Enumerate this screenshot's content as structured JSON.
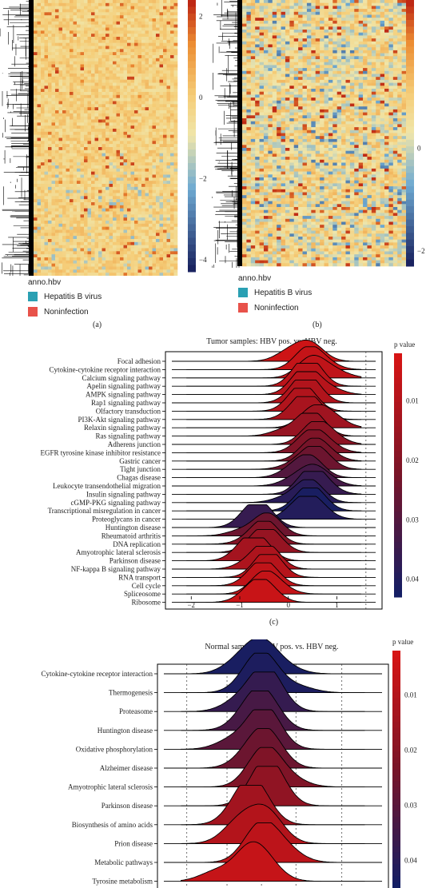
{
  "panel_a": {
    "label": "(a)",
    "legend_title": "anno.hbv",
    "legend_items": [
      {
        "label": "Hepatitis B virus",
        "color": "#2aa0b3"
      },
      {
        "label": "Noninfection",
        "color": "#e8524a"
      }
    ],
    "colorbar_ticks": [
      "2",
      "0",
      "−2",
      "−4"
    ],
    "colorbar_range": [
      -4.3,
      2.4
    ]
  },
  "panel_b": {
    "label": "(b)",
    "legend_title": "anno.hbv",
    "legend_items": [
      {
        "label": "Hepatitis B virus",
        "color": "#2aa0b3"
      },
      {
        "label": "Noninfection",
        "color": "#e8524a"
      }
    ],
    "colorbar_ticks": [
      "0",
      "−2"
    ],
    "colorbar_range": [
      -2.3,
      2.9
    ]
  },
  "chart_data": [
    {
      "type": "ridgeline",
      "title": "Tumor samples: HBV pos. vs. HBV neg.",
      "panel_label": "(c)",
      "legend_title": "p value",
      "legend_ticks": [
        "0.01",
        "0.02",
        "0.03",
        "0.04"
      ],
      "legend_range": [
        0.002,
        0.043
      ],
      "xlim": [
        -2.4,
        1.8
      ],
      "x_ticks": [
        -2,
        -1,
        0,
        1
      ],
      "x_tick_labels": [
        "−2",
        "−1",
        "0",
        "1"
      ],
      "categories": [
        {
          "name": "Focal adhesion",
          "center": 0.45,
          "p": 0.004
        },
        {
          "name": "Cytokine-cytokine receptor interaction",
          "center": 0.4,
          "p": 0.006
        },
        {
          "name": "Calcium signaling pathway",
          "center": 0.45,
          "p": 0.007
        },
        {
          "name": "Apelin signaling pathway",
          "center": 0.35,
          "p": 0.008
        },
        {
          "name": "AMPK signaling pathway",
          "center": 0.35,
          "p": 0.009
        },
        {
          "name": "Rap1 signaling pathway",
          "center": 0.35,
          "p": 0.01
        },
        {
          "name": "Olfactory transduction",
          "center": 0.3,
          "p": 0.01
        },
        {
          "name": "PI3K-Akt signaling pathway",
          "center": 0.45,
          "p": 0.012
        },
        {
          "name": "Relaxin signaling pathway",
          "center": 0.5,
          "p": 0.014
        },
        {
          "name": "Ras signaling pathway",
          "center": 0.45,
          "p": 0.016
        },
        {
          "name": "Adherens junction",
          "center": 0.55,
          "p": 0.018
        },
        {
          "name": "EGFR tyrosine kinase inhibitor resistance",
          "center": 0.55,
          "p": 0.021
        },
        {
          "name": "Gastric cancer",
          "center": 0.5,
          "p": 0.023
        },
        {
          "name": "Tight junction",
          "center": 0.5,
          "p": 0.025
        },
        {
          "name": "Chagas disease",
          "center": 0.45,
          "p": 0.03
        },
        {
          "name": "Leukocyte transendothelial migration",
          "center": 0.5,
          "p": 0.033
        },
        {
          "name": "Insulin signaling pathway",
          "center": 0.45,
          "p": 0.036
        },
        {
          "name": "cGMP-PKG signaling pathway",
          "center": 0.45,
          "p": 0.039
        },
        {
          "name": "Transcriptional misregulation in cancer",
          "center": 0.45,
          "p": 0.042
        },
        {
          "name": "Proteoglycans in cancer",
          "center": 0.45,
          "p": 0.04
        },
        {
          "name": "Huntington disease",
          "center": -0.55,
          "p": 0.036
        },
        {
          "name": "Rheumatoid arthritis",
          "center": -0.45,
          "p": 0.025
        },
        {
          "name": "DNA replication",
          "center": -0.5,
          "p": 0.02
        },
        {
          "name": "Amyotrophic lateral sclerosis",
          "center": -0.5,
          "p": 0.016
        },
        {
          "name": "Parkinson disease",
          "center": -0.6,
          "p": 0.013
        },
        {
          "name": "NF-kappa B signaling pathway",
          "center": -0.45,
          "p": 0.011
        },
        {
          "name": "RNA transport",
          "center": -0.4,
          "p": 0.009
        },
        {
          "name": "Cell cycle",
          "center": -0.45,
          "p": 0.007
        },
        {
          "name": "Spliceosome",
          "center": -0.5,
          "p": 0.006
        },
        {
          "name": "Ribosome",
          "center": -0.5,
          "p": 0.005
        }
      ]
    },
    {
      "type": "ridgeline",
      "title": "Normal samples: HBV pos. vs. HBV neg.",
      "legend_title": "p value",
      "legend_ticks": [
        "0.01",
        "0.02",
        "0.03",
        "0.04"
      ],
      "legend_range": [
        0.002,
        0.045
      ],
      "xlim": [
        -2.0,
        1.8
      ],
      "categories": [
        {
          "name": "Cytokine-cytokine receptor interaction",
          "center": -0.3,
          "p": 0.044
        },
        {
          "name": "Thermogenesis",
          "center": -0.25,
          "p": 0.043
        },
        {
          "name": "Proteasome",
          "center": -0.25,
          "p": 0.038
        },
        {
          "name": "Huntington disease",
          "center": -0.25,
          "p": 0.034
        },
        {
          "name": "Oxidative phosphorylation",
          "center": -0.25,
          "p": 0.03
        },
        {
          "name": "Alzheimer disease",
          "center": -0.2,
          "p": 0.026
        },
        {
          "name": "Amyotrophic lateral sclerosis",
          "center": -0.2,
          "p": 0.022
        },
        {
          "name": "Parkinson disease",
          "center": -0.2,
          "p": 0.018
        },
        {
          "name": "Biosynthesis of amino acids",
          "center": -0.4,
          "p": 0.014
        },
        {
          "name": "Prion disease",
          "center": -0.2,
          "p": 0.01
        },
        {
          "name": "Metabolic pathways",
          "center": -0.35,
          "p": 0.008
        },
        {
          "name": "Tyrosine metabolism",
          "center": -0.5,
          "p": 0.006
        }
      ]
    }
  ]
}
